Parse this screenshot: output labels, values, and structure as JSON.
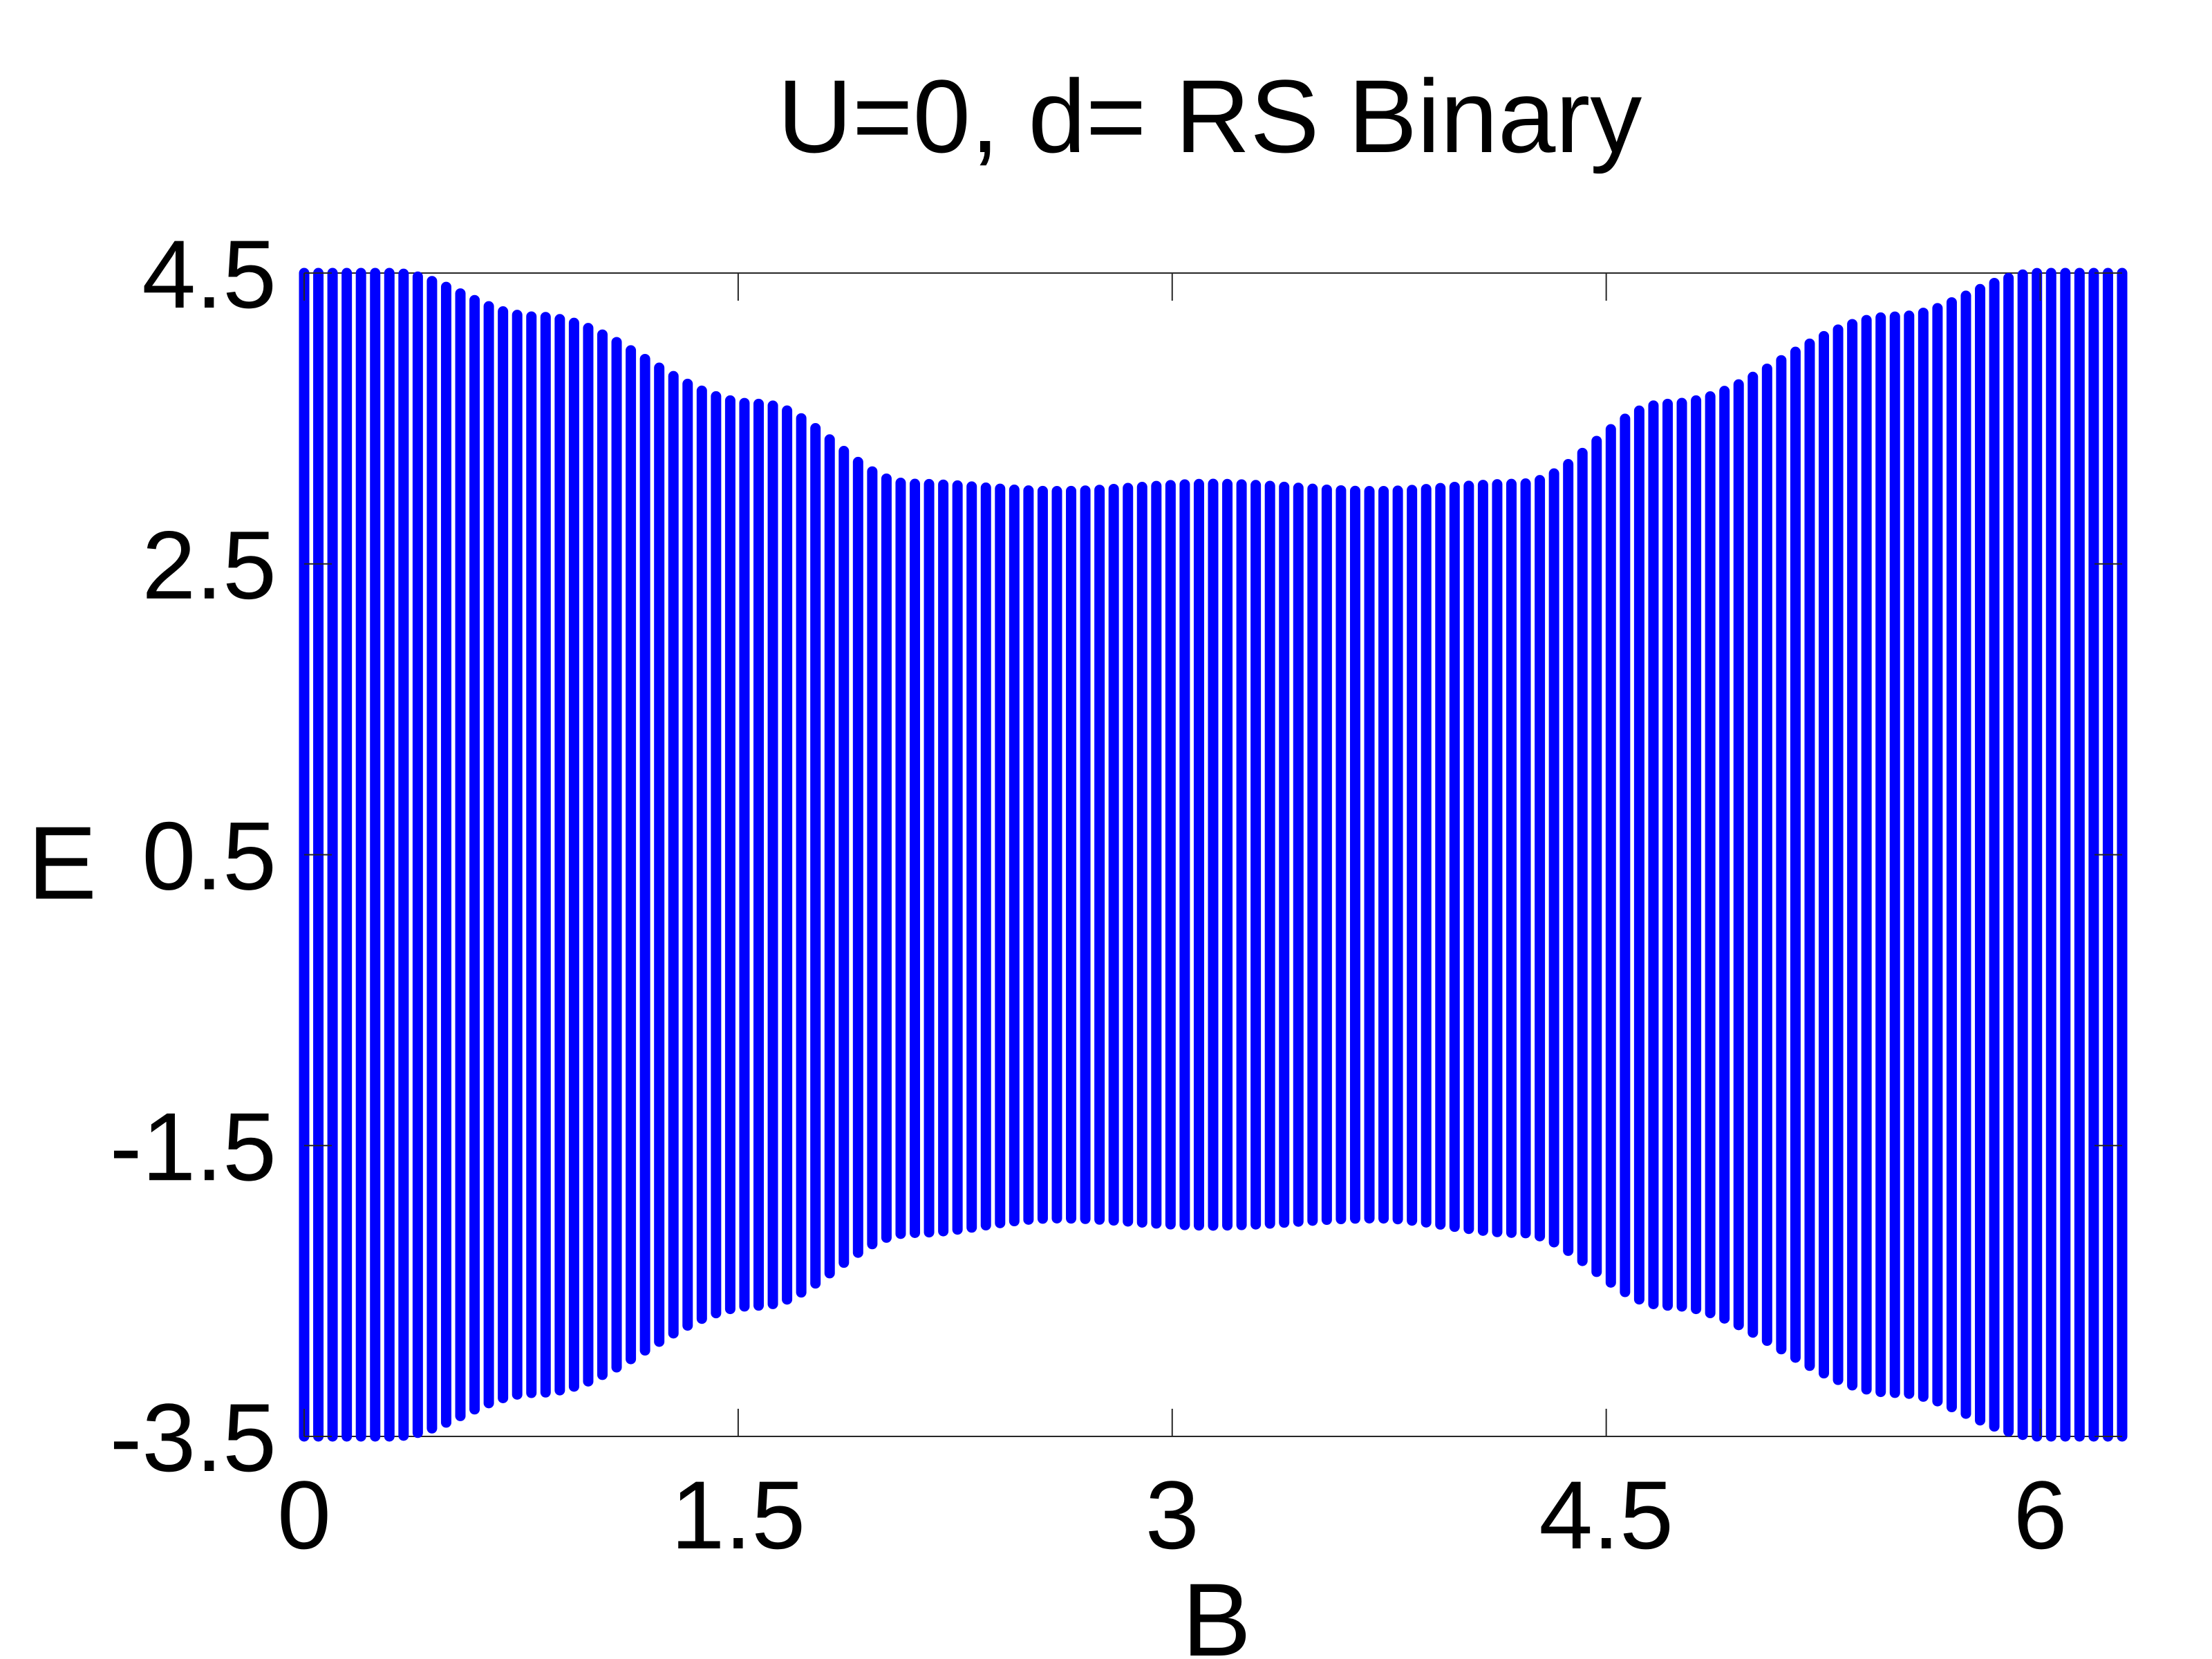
{
  "chart_data": {
    "type": "scatter",
    "title": "U=0, d= RS Binary",
    "xlabel": "B",
    "ylabel": "E",
    "xlim": [
      0,
      6.283
    ],
    "ylim": [
      -3.5,
      4.5
    ],
    "xticks": [
      "0",
      "1.5",
      "3",
      "4.5",
      "6"
    ],
    "yticks": [
      "-3.5",
      "-1.5",
      "0.5",
      "2.5",
      "4.5"
    ],
    "grid": false,
    "legend": "none",
    "colors": {
      "series": "#0000ff",
      "axes": "#000000",
      "background": "#ffffff"
    },
    "series": [
      {
        "x_start": 0,
        "x_end": 6.283,
        "x_count": 129,
        "columns": [
          {
            "B": 0.0,
            "E_min": -3.5,
            "E_max": 4.5
          },
          {
            "B": 0.3,
            "E_min": -3.5,
            "E_max": 4.5
          },
          {
            "B": 0.8,
            "E_min": -3.2,
            "E_max": 4.2
          },
          {
            "B": 1.57,
            "E_min": -2.6,
            "E_max": 3.6
          },
          {
            "B": 2.1,
            "E_min": -2.1,
            "E_max": 3.05
          },
          {
            "B": 2.6,
            "E_min": -2.0,
            "E_max": 3.0
          },
          {
            "B": 3.14,
            "E_min": -2.05,
            "E_max": 3.05
          },
          {
            "B": 3.7,
            "E_min": -2.0,
            "E_max": 3.0
          },
          {
            "B": 4.2,
            "E_min": -2.1,
            "E_max": 3.05
          },
          {
            "B": 4.71,
            "E_min": -2.6,
            "E_max": 3.6
          },
          {
            "B": 5.5,
            "E_min": -3.2,
            "E_max": 4.2
          },
          {
            "B": 6.0,
            "E_min": -3.5,
            "E_max": 4.5
          },
          {
            "B": 6.283,
            "E_min": -3.5,
            "E_max": 4.5
          }
        ]
      }
    ]
  }
}
